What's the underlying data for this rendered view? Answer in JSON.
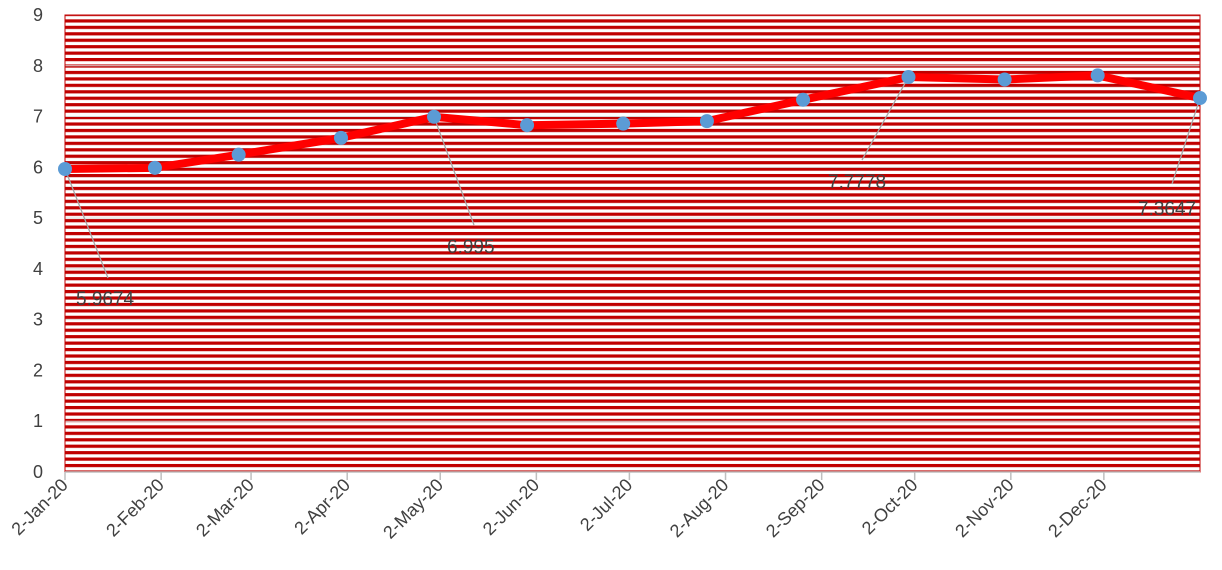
{
  "chart_data": {
    "type": "line",
    "title": "",
    "xlabel": "",
    "ylabel": "",
    "ylim": [
      0,
      9
    ],
    "yticks": [
      0,
      1,
      2,
      3,
      4,
      5,
      6,
      7,
      8,
      9
    ],
    "x_axis_type": "date",
    "xlim": [
      "2020-01-02",
      "2021-01-02"
    ],
    "xtick_dates": [
      "2020-01-02",
      "2020-02-02",
      "2020-03-02",
      "2020-04-02",
      "2020-05-02",
      "2020-06-02",
      "2020-07-02",
      "2020-08-02",
      "2020-09-02",
      "2020-10-02",
      "2020-11-02",
      "2020-12-02"
    ],
    "xtick_labels": [
      "2-Jan-20",
      "2-Feb-20",
      "2-Mar-20",
      "2-Apr-20",
      "2-May-20",
      "2-Jun-20",
      "2-Jul-20",
      "2-Aug-20",
      "2-Sep-20",
      "2-Oct-20",
      "2-Nov-20",
      "2-Dec-20"
    ],
    "grid": true,
    "legend": "none",
    "series": [
      {
        "line_color": "#ff0000",
        "marker_color": "#5b9bd5",
        "points": [
          {
            "x": "2020-01-02",
            "y": 5.9674
          },
          {
            "x": "2020-01-31",
            "y": 5.99
          },
          {
            "x": "2020-02-27",
            "y": 6.25
          },
          {
            "x": "2020-03-31",
            "y": 6.58
          },
          {
            "x": "2020-04-30",
            "y": 6.995
          },
          {
            "x": "2020-05-30",
            "y": 6.83
          },
          {
            "x": "2020-06-30",
            "y": 6.86
          },
          {
            "x": "2020-07-27",
            "y": 6.91
          },
          {
            "x": "2020-08-27",
            "y": 7.33
          },
          {
            "x": "2020-09-30",
            "y": 7.7778
          },
          {
            "x": "2020-10-31",
            "y": 7.73
          },
          {
            "x": "2020-11-30",
            "y": 7.81
          },
          {
            "x": "2021-01-02",
            "y": 7.3647
          }
        ]
      }
    ],
    "data_labels": [
      {
        "text": "5.9674",
        "x": "2020-01-02",
        "y": 5.9674
      },
      {
        "text": "6.995",
        "x": "2020-04-30",
        "y": 6.995
      },
      {
        "text": "7.7778",
        "x": "2020-09-30",
        "y": 7.7778
      },
      {
        "text": "7.3647",
        "x": "2021-01-02",
        "y": 7.3647
      }
    ],
    "plot_area_color": "#ffffff",
    "hatch_color": "#c00000",
    "grid_color": "#d9d9d9",
    "axis_color": "#bfbfbf",
    "leader_color": "#a6a6a6",
    "label_color": "#404040"
  }
}
